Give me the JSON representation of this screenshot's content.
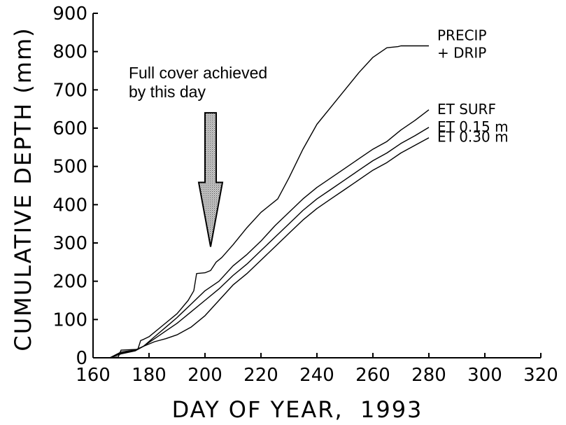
{
  "chart_data": {
    "type": "line",
    "xlabel": "DAY OF YEAR,  1993",
    "ylabel": "CUMULATIVE DEPTH (mm)",
    "xlim": [
      160,
      320
    ],
    "ylim": [
      0,
      900
    ],
    "xticks": [
      160,
      180,
      200,
      220,
      240,
      260,
      280,
      300,
      320
    ],
    "yticks": [
      0,
      100,
      200,
      300,
      400,
      500,
      600,
      700,
      800,
      900
    ],
    "grid": false,
    "series": [
      {
        "name": "PRECIP + DRIP",
        "label_lines": [
          "PRECIP",
          "+ DRIP"
        ],
        "x": [
          166,
          169,
          170,
          176,
          177,
          178,
          180,
          185,
          190,
          194,
          196,
          197,
          200,
          202,
          204,
          206,
          210,
          215,
          220,
          226,
          230,
          235,
          240,
          245,
          250,
          255,
          260,
          265,
          269,
          270,
          275,
          280
        ],
        "y": [
          0,
          2,
          20,
          22,
          45,
          48,
          55,
          85,
          115,
          150,
          175,
          220,
          222,
          228,
          250,
          262,
          295,
          340,
          380,
          415,
          470,
          545,
          610,
          655,
          700,
          745,
          785,
          810,
          813,
          815,
          815,
          815
        ]
      },
      {
        "name": "ET SURF",
        "label_lines": [
          "ET SURF"
        ],
        "x": [
          166,
          170,
          175,
          178,
          182,
          186,
          190,
          195,
          200,
          205,
          210,
          215,
          220,
          225,
          230,
          235,
          240,
          245,
          250,
          255,
          260,
          265,
          270,
          275,
          280
        ],
        "y": [
          0,
          15,
          20,
          30,
          55,
          80,
          105,
          140,
          175,
          200,
          240,
          270,
          305,
          345,
          380,
          415,
          445,
          470,
          495,
          520,
          545,
          565,
          595,
          620,
          648
        ]
      },
      {
        "name": "ET 0.15 m",
        "label_lines": [
          "ET 0.15 m"
        ],
        "x": [
          166,
          170,
          175,
          178,
          182,
          186,
          190,
          195,
          200,
          205,
          210,
          215,
          220,
          225,
          230,
          235,
          240,
          245,
          250,
          255,
          260,
          265,
          270,
          275,
          280
        ],
        "y": [
          0,
          12,
          20,
          30,
          50,
          70,
          90,
          120,
          150,
          180,
          215,
          245,
          280,
          315,
          350,
          385,
          415,
          440,
          465,
          490,
          515,
          535,
          560,
          580,
          602
        ]
      },
      {
        "name": "ET 0.30 m",
        "label_lines": [
          "ET 0.30 m"
        ],
        "x": [
          166,
          170,
          175,
          178,
          182,
          186,
          190,
          195,
          200,
          205,
          210,
          215,
          220,
          225,
          230,
          235,
          240,
          245,
          250,
          255,
          260,
          265,
          270,
          275,
          280
        ],
        "y": [
          0,
          10,
          18,
          30,
          42,
          50,
          60,
          80,
          110,
          150,
          190,
          220,
          255,
          290,
          325,
          360,
          390,
          415,
          440,
          465,
          490,
          510,
          535,
          555,
          575
        ]
      }
    ],
    "annotation": {
      "text_lines": [
        "Full cover achieved",
        "by this day"
      ],
      "arrow_x": 202,
      "arrow_from_y": 640,
      "arrow_to_y": 290,
      "arrow_fill": "#8c8c8c"
    }
  }
}
